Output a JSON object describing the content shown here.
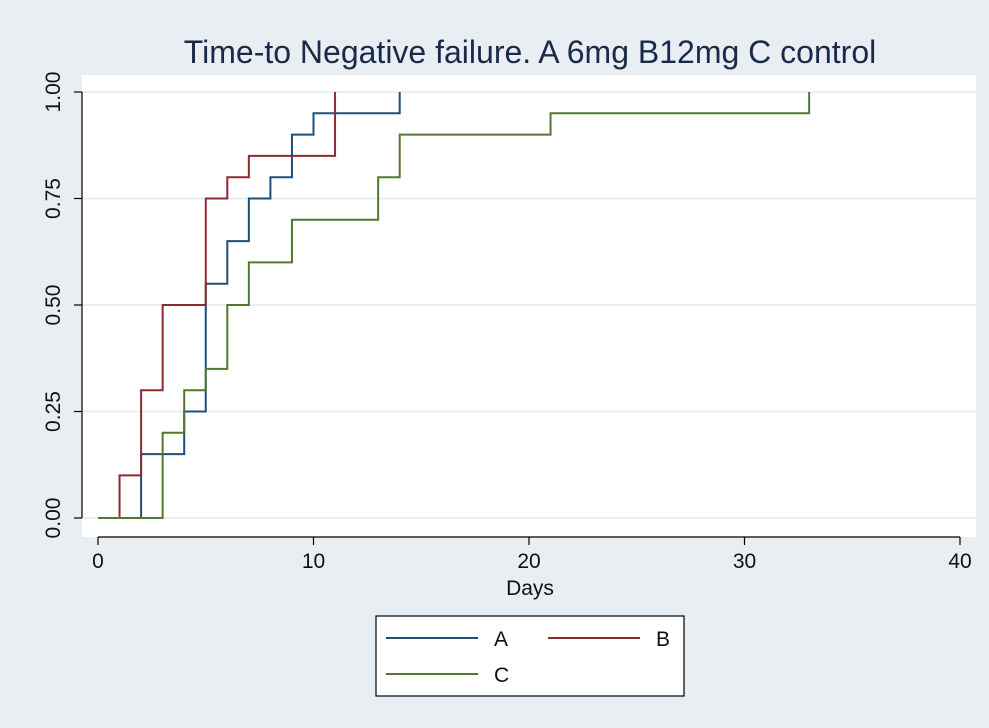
{
  "chart_data": {
    "type": "line",
    "step": true,
    "title": "Time-to Negative failure. A 6mg B12mg C control",
    "xlabel": "Days",
    "ylabel": "",
    "xlim": [
      0,
      40
    ],
    "ylim": [
      0,
      1
    ],
    "xticks": [
      0,
      10,
      20,
      30,
      40
    ],
    "yticks": [
      0,
      0.25,
      0.5,
      0.75,
      1.0
    ],
    "xtick_labels": [
      "0",
      "10",
      "20",
      "30",
      "40"
    ],
    "ytick_labels": [
      "0.00",
      "0.25",
      "0.50",
      "0.75",
      "1.00"
    ],
    "grid": true,
    "legend_position": "bottom",
    "series": [
      {
        "name": "A",
        "color": "#1f4e79",
        "x": [
          0,
          2,
          4,
          5,
          6,
          7,
          8,
          9,
          10,
          14
        ],
        "y": [
          0,
          0.15,
          0.25,
          0.55,
          0.65,
          0.75,
          0.8,
          0.9,
          0.95,
          1.0
        ]
      },
      {
        "name": "B",
        "color": "#8b2c33",
        "x": [
          0,
          1,
          2,
          3,
          5,
          6,
          7,
          11
        ],
        "y": [
          0,
          0.1,
          0.3,
          0.5,
          0.75,
          0.8,
          0.85,
          1.0
        ]
      },
      {
        "name": "C",
        "color": "#55772d",
        "x": [
          0,
          3,
          4,
          5,
          6,
          7,
          9,
          13,
          14,
          21,
          33
        ],
        "y": [
          0,
          0.2,
          0.3,
          0.35,
          0.5,
          0.6,
          0.7,
          0.8,
          0.9,
          0.95,
          1.0
        ]
      }
    ]
  }
}
